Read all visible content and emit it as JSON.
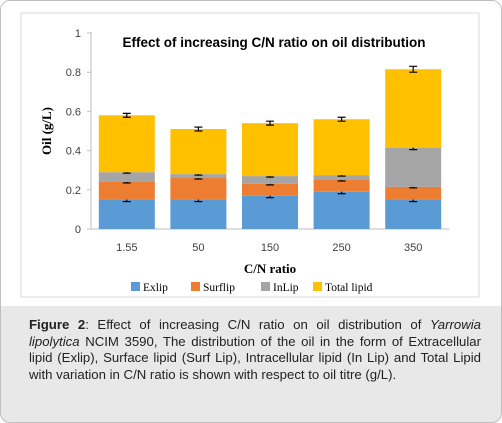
{
  "chart_data": {
    "type": "bar",
    "stacked": true,
    "title": "Effect of increasing C/N ratio on oil distribution",
    "xlabel": "C/N ratio",
    "ylabel": "Oil (g/L)",
    "ylim": [
      0,
      1
    ],
    "yticks": [
      "0",
      "0.2",
      "0.4",
      "0.6",
      "0.8",
      "1"
    ],
    "categories": [
      "1.55",
      "50",
      "150",
      "250",
      "350"
    ],
    "legend_position": "bottom",
    "grid": false,
    "series": [
      {
        "name": "Exlip",
        "color": "#5b9bd5",
        "values": [
          0.15,
          0.15,
          0.17,
          0.19,
          0.15
        ],
        "error": [
          0.01,
          0.01,
          0.01,
          0.01,
          0.01
        ]
      },
      {
        "name": "Surflip",
        "color": "#ed7d31",
        "values": [
          0.09,
          0.11,
          0.06,
          0.06,
          0.065
        ],
        "error": [
          0.005,
          0.005,
          0.005,
          0.005,
          0.005
        ]
      },
      {
        "name": "InLip",
        "color": "#a5a5a5",
        "values": [
          0.05,
          0.02,
          0.04,
          0.025,
          0.2
        ],
        "error": [
          0.005,
          0.005,
          0.005,
          0.005,
          0.01
        ]
      },
      {
        "name": "Total lipid",
        "color": "#ffc000",
        "values": [
          0.29,
          0.23,
          0.27,
          0.285,
          0.4
        ],
        "error": [
          0.01,
          0.01,
          0.01,
          0.01,
          0.015
        ]
      }
    ]
  },
  "caption": {
    "label": "Figure 2",
    "text_1": ": Effect of increasing C/N ratio on oil distribution of ",
    "species": "Yarrowia lipolytica",
    "text_2": " NCIM 3590, The distribution of the oil in the form of Extracellular lipid (Exlip), Surface lipid (Surf Lip), Intracellular lipid (In Lip) and Total Lipid with variation in C/N ratio is shown with respect to oil titre (g/L)."
  }
}
